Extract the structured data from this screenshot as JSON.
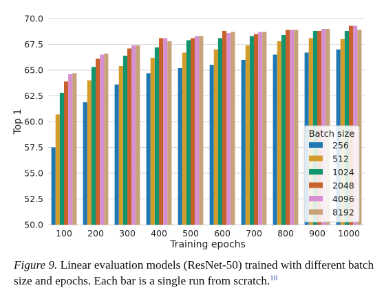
{
  "chart_data": {
    "type": "bar",
    "xlabel": "Training epochs",
    "ylabel": "Top 1",
    "categories": [
      "100",
      "200",
      "300",
      "400",
      "500",
      "600",
      "700",
      "800",
      "900",
      "1000"
    ],
    "ylim": [
      50.0,
      70.0
    ],
    "yticks": [
      "50.0",
      "52.5",
      "55.0",
      "57.5",
      "60.0",
      "62.5",
      "65.0",
      "67.5",
      "70.0"
    ],
    "grid": true,
    "legend": {
      "title": "Batch size",
      "placement": "lower-right"
    },
    "series": [
      {
        "name": "256",
        "color": "#1f77b4",
        "values": [
          57.5,
          61.9,
          63.6,
          64.7,
          65.2,
          65.5,
          66.0,
          66.5,
          66.7,
          67.0
        ]
      },
      {
        "name": "512",
        "color": "#d39c2a",
        "values": [
          60.7,
          64.0,
          65.4,
          66.2,
          66.7,
          67.0,
          67.4,
          67.8,
          68.1,
          68.0
        ]
      },
      {
        "name": "1024",
        "color": "#12946f",
        "values": [
          62.8,
          65.3,
          66.4,
          67.2,
          67.9,
          68.1,
          68.3,
          68.4,
          68.8,
          68.8
        ]
      },
      {
        "name": "2048",
        "color": "#c9612c",
        "values": [
          63.9,
          66.1,
          67.1,
          68.1,
          68.1,
          68.8,
          68.5,
          68.9,
          68.8,
          69.3
        ]
      },
      {
        "name": "4096",
        "color": "#d68fd0",
        "values": [
          64.6,
          66.5,
          67.4,
          68.1,
          68.3,
          68.6,
          68.7,
          68.9,
          69.0,
          69.3
        ]
      },
      {
        "name": "8192",
        "color": "#c8a279",
        "values": [
          64.7,
          66.6,
          67.4,
          67.8,
          68.3,
          68.7,
          68.7,
          68.9,
          69.0,
          68.9
        ]
      }
    ]
  },
  "caption": {
    "label": "Figure 9.",
    "text": " Linear evaluation models (ResNet-50) trained with different batch size and epochs. Each bar is a single run from scratch.",
    "footnote": "10"
  }
}
